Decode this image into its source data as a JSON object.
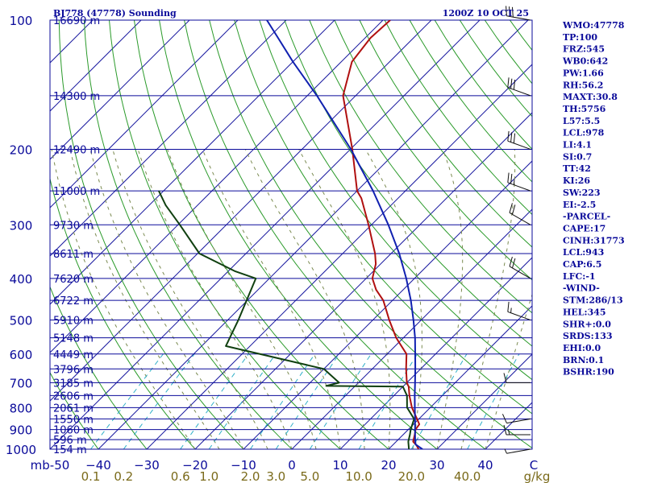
{
  "station": "BJ778 (47778) Sounding",
  "time": "1200Z 10 OCT 25",
  "indices": [
    "WMO:47778",
    "TP:100",
    "FRZ:545",
    "WB0:642",
    "PW:1.66",
    "RH:56.2",
    "MAXT:30.8",
    "TH:5756",
    "L57:5.5",
    "LCL:978",
    "LI:4.1",
    "SI:0.7",
    "TT:42",
    "KI:26",
    "SW:223",
    "EI:-2.5",
    "-PARCEL-",
    "CAPE:17",
    "CINH:31773",
    "LCL:943",
    "CAP:6.5",
    "LFC:-1",
    "-WIND-",
    "STM:286/13",
    "HEL:345",
    "SHR+:0.0",
    "SRDS:133",
    "EHI:0.0",
    "BRN:0.1",
    "BSHR:190"
  ],
  "chart_data": {
    "type": "line",
    "diagram": "Skew-T log-P",
    "title": "BJ778 (47778) Sounding",
    "ylabel": "mb",
    "xlabel": "C",
    "mixing_ratio_unit": "g/kg",
    "y_reverse": true,
    "ylim": [
      1000,
      100
    ],
    "xlim": [
      -50,
      50
    ],
    "pressure_ticks": [
      100,
      200,
      300,
      400,
      500,
      600,
      700,
      800,
      900,
      1000
    ],
    "temperature_ticks": [
      -50,
      -40,
      -30,
      -20,
      -10,
      0,
      10,
      20,
      30,
      40,
      50
    ],
    "temperature_tick_labels": [
      "mb-50",
      "−40",
      "−30",
      "−20",
      "−10",
      "0",
      "10",
      "20",
      "30",
      "40",
      "C"
    ],
    "mixing_ratio_ticks": [
      "0.1",
      "0.2",
      "0.6",
      "1.0",
      "2.0",
      "3.0",
      "5.0",
      "10.0",
      "20.0",
      "40.0",
      "g/kg"
    ],
    "height_levels": [
      {
        "p": 100,
        "label": "16690 m"
      },
      {
        "p": 150,
        "label": "14300 m"
      },
      {
        "p": 200,
        "label": "12490 m"
      },
      {
        "p": 250,
        "label": "11000 m"
      },
      {
        "p": 300,
        "label": "9730 m"
      },
      {
        "p": 350,
        "label": "8611 m"
      },
      {
        "p": 400,
        "label": "7620 m"
      },
      {
        "p": 450,
        "label": "6722 m"
      },
      {
        "p": 500,
        "label": "5910 m"
      },
      {
        "p": 550,
        "label": "5148 m"
      },
      {
        "p": 600,
        "label": "4449 m"
      },
      {
        "p": 650,
        "label": "3796 m"
      },
      {
        "p": 700,
        "label": "3185 m"
      },
      {
        "p": 750,
        "label": "2606 m"
      },
      {
        "p": 800,
        "label": "2061 m"
      },
      {
        "p": 850,
        "label": "1550 m"
      },
      {
        "p": 900,
        "label": "1060 m"
      },
      {
        "p": 950,
        "label": "596 m"
      },
      {
        "p": 1000,
        "label": "154 m"
      }
    ],
    "series": [
      {
        "name": "Temperature",
        "color": "#b01010",
        "points": [
          {
            "p": 1000,
            "t": 26.2
          },
          {
            "p": 980,
            "t": 25.0
          },
          {
            "p": 960,
            "t": 23.5
          },
          {
            "p": 925,
            "t": 22.4
          },
          {
            "p": 900,
            "t": 21.5
          },
          {
            "p": 875,
            "t": 21.2
          },
          {
            "p": 850,
            "t": 19.6
          },
          {
            "p": 800,
            "t": 16.2
          },
          {
            "p": 750,
            "t": 13.2
          },
          {
            "p": 715,
            "t": 11.2
          },
          {
            "p": 700,
            "t": 10.0
          },
          {
            "p": 650,
            "t": 7.0
          },
          {
            "p": 600,
            "t": 4.0
          },
          {
            "p": 550,
            "t": -1.5
          },
          {
            "p": 500,
            "t": -6.6
          },
          {
            "p": 450,
            "t": -11.9
          },
          {
            "p": 425,
            "t": -15.6
          },
          {
            "p": 400,
            "t": -18.7
          },
          {
            "p": 370,
            "t": -21.0
          },
          {
            "p": 350,
            "t": -23.3
          },
          {
            "p": 300,
            "t": -30.6
          },
          {
            "p": 260,
            "t": -37.6
          },
          {
            "p": 250,
            "t": -40.0
          },
          {
            "p": 200,
            "t": -49.6
          },
          {
            "p": 150,
            "t": -62.6
          },
          {
            "p": 125,
            "t": -67.8
          },
          {
            "p": 110,
            "t": -68.9
          },
          {
            "p": 100,
            "t": -68.5
          }
        ]
      },
      {
        "name": "Dewpoint",
        "color": "#104010",
        "points": [
          {
            "p": 1000,
            "t": 24.2
          },
          {
            "p": 960,
            "t": 22.5
          },
          {
            "p": 925,
            "t": 21.4
          },
          {
            "p": 900,
            "t": 20.5
          },
          {
            "p": 850,
            "t": 19.0
          },
          {
            "p": 800,
            "t": 15.2
          },
          {
            "p": 750,
            "t": 12.7
          },
          {
            "p": 715,
            "t": 10.0
          },
          {
            "p": 712,
            "t": -6.0
          },
          {
            "p": 700,
            "t": -4.0
          },
          {
            "p": 650,
            "t": -10.0
          },
          {
            "p": 575,
            "t": -35.0
          },
          {
            "p": 500,
            "t": -37.8
          },
          {
            "p": 400,
            "t": -42.8
          },
          {
            "p": 385,
            "t": -48.5
          },
          {
            "p": 350,
            "t": -59.6
          },
          {
            "p": 300,
            "t": -69.6
          },
          {
            "p": 270,
            "t": -76.6
          },
          {
            "p": 250,
            "t": -81.0
          }
        ]
      },
      {
        "name": "Parcel path",
        "color": "#1020b0",
        "points": [
          {
            "p": 1000,
            "t": 27.0
          },
          {
            "p": 975,
            "t": 24.6
          },
          {
            "p": 950,
            "t": 23.5
          },
          {
            "p": 900,
            "t": 21.4
          },
          {
            "p": 850,
            "t": 19.2
          },
          {
            "p": 800,
            "t": 16.8
          },
          {
            "p": 750,
            "t": 14.3
          },
          {
            "p": 700,
            "t": 11.7
          },
          {
            "p": 650,
            "t": 8.9
          },
          {
            "p": 600,
            "t": 5.8
          },
          {
            "p": 550,
            "t": 2.4
          },
          {
            "p": 500,
            "t": -1.6
          },
          {
            "p": 450,
            "t": -6.2
          },
          {
            "p": 400,
            "t": -11.7
          },
          {
            "p": 350,
            "t": -18.3
          },
          {
            "p": 300,
            "t": -26.5
          },
          {
            "p": 250,
            "t": -36.7
          },
          {
            "p": 200,
            "t": -49.9
          },
          {
            "p": 150,
            "t": -68.0
          },
          {
            "p": 125,
            "t": -80.0
          },
          {
            "p": 110,
            "t": -88.0
          },
          {
            "p": 100,
            "t": -94.0
          }
        ]
      }
    ],
    "wind_barbs": [
      {
        "p": 1000,
        "dir": 260,
        "spd": 5
      },
      {
        "p": 925,
        "dir": 270,
        "spd": 15
      },
      {
        "p": 850,
        "dir": 260,
        "spd": 10
      },
      {
        "p": 700,
        "dir": 270,
        "spd": 10
      },
      {
        "p": 500,
        "dir": 290,
        "spd": 15
      },
      {
        "p": 400,
        "dir": 300,
        "spd": 20
      },
      {
        "p": 300,
        "dir": 300,
        "spd": 20
      },
      {
        "p": 250,
        "dir": 290,
        "spd": 25
      },
      {
        "p": 200,
        "dir": 290,
        "spd": 30
      },
      {
        "p": 150,
        "dir": 290,
        "spd": 30
      },
      {
        "p": 100,
        "dir": 280,
        "spd": 30
      }
    ]
  }
}
